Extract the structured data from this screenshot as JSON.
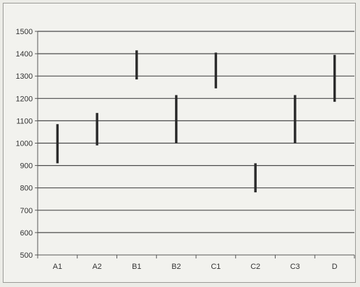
{
  "chart_data": {
    "type": "range-bar",
    "title": "",
    "xlabel": "",
    "ylabel": "",
    "categories": [
      "A1",
      "A2",
      "B1",
      "B2",
      "C1",
      "C2",
      "C3",
      "D"
    ],
    "series": [
      {
        "low": [
          910,
          990,
          1285,
          1000,
          1245,
          780,
          1000,
          1185
        ],
        "high": [
          1085,
          1135,
          1415,
          1215,
          1405,
          910,
          1215,
          1395
        ]
      }
    ],
    "ylim": [
      500,
      1500
    ],
    "yticks": [
      500,
      600,
      700,
      800,
      900,
      1000,
      1100,
      1200,
      1300,
      1400,
      1500
    ],
    "grid": true,
    "legend": "none",
    "colors": {
      "bar": "#2b2b2b",
      "grid": "#4a4a4a",
      "axis": "#555555"
    }
  }
}
